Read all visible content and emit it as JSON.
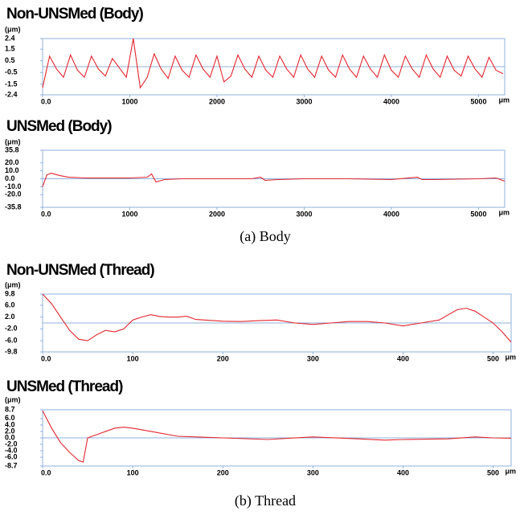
{
  "chart_data": [
    {
      "type": "line",
      "title": "Non-UNSMed (Body)",
      "y_unit": "(μm)",
      "x_unit": "μm",
      "x": [
        0,
        80,
        160,
        240,
        320,
        400,
        480,
        560,
        640,
        720,
        800,
        880,
        960,
        1040,
        1120,
        1200,
        1280,
        1360,
        1440,
        1520,
        1600,
        1680,
        1760,
        1840,
        1920,
        2000,
        2080,
        2160,
        2240,
        2320,
        2400,
        2480,
        2560,
        2640,
        2720,
        2800,
        2880,
        2960,
        3040,
        3120,
        3200,
        3280,
        3360,
        3440,
        3520,
        3600,
        3680,
        3760,
        3840,
        3920,
        4000,
        4080,
        4160,
        4240,
        4320,
        4400,
        4480,
        4560,
        4640,
        4720,
        4800,
        4880,
        4960,
        5040,
        5120,
        5200,
        5280
      ],
      "series": [
        {
          "color": "#e3262e",
          "values": [
            -1.8,
            0.9,
            -0.2,
            -0.9,
            1.0,
            -0.3,
            -0.9,
            0.9,
            -0.2,
            -0.8,
            0.7,
            -0.1,
            -0.9,
            2.4,
            -1.8,
            -0.9,
            1.1,
            -0.2,
            -1.0,
            0.9,
            -0.3,
            -0.9,
            1.0,
            -0.2,
            -0.9,
            0.9,
            -1.3,
            -0.8,
            1.0,
            -0.2,
            -0.9,
            0.9,
            -0.3,
            -0.9,
            0.9,
            -0.2,
            -0.9,
            1.0,
            -0.2,
            -0.9,
            0.9,
            -0.3,
            -0.9,
            1.0,
            -0.2,
            -0.9,
            0.9,
            -0.2,
            -0.9,
            1.0,
            -0.3,
            -0.9,
            0.9,
            -0.2,
            -0.9,
            1.0,
            -0.2,
            -0.9,
            0.9,
            -0.3,
            -0.8,
            0.9,
            -0.2,
            -0.9,
            0.8,
            -0.3,
            -0.6
          ]
        }
      ],
      "xlim": [
        0,
        5300
      ],
      "ylim": [
        -2.4,
        2.4
      ],
      "xticks": [
        {
          "value": 0,
          "label": "0.0"
        },
        1000,
        2000,
        3000,
        4000,
        5000
      ],
      "yticks": [
        2.4,
        1.5,
        0.5,
        -0.5,
        -1.5,
        -2.4
      ]
    },
    {
      "type": "line",
      "title": "UNSMed (Body)",
      "y_unit": "(μm)",
      "x_unit": "μm",
      "x": [
        0,
        50,
        100,
        200,
        300,
        500,
        800,
        1000,
        1200,
        1250,
        1300,
        1400,
        1600,
        2000,
        2400,
        2500,
        2550,
        2700,
        3000,
        3500,
        4000,
        4300,
        4350,
        4500,
        5000,
        5200,
        5300
      ],
      "series": [
        {
          "color": "#e3262e",
          "values": [
            -10,
            5,
            7,
            4,
            2,
            1,
            1,
            1,
            2,
            6,
            -4,
            -1,
            0,
            0,
            0,
            2,
            -2,
            -1,
            0,
            0,
            -1,
            2,
            -1,
            -1,
            0,
            1,
            -3
          ]
        }
      ],
      "xlim": [
        0,
        5300
      ],
      "ylim": [
        -35.8,
        35.8
      ],
      "xticks": [
        {
          "value": 0,
          "label": "0.0"
        },
        1000,
        2000,
        3000,
        4000,
        5000
      ],
      "yticks": [
        35.8,
        {
          "value": 20,
          "label": "20.0"
        },
        {
          "value": 10,
          "label": "10.0"
        },
        {
          "value": 0,
          "label": "0.0"
        },
        {
          "value": -10,
          "label": "-10.0"
        },
        {
          "value": -20,
          "label": "-20.0"
        },
        -35.8
      ]
    },
    {
      "type": "line",
      "title": "Non-UNSMed (Thread)",
      "y_unit": "(μm)",
      "x_unit": "μm",
      "x": [
        0,
        10,
        20,
        30,
        40,
        50,
        60,
        70,
        80,
        90,
        100,
        110,
        120,
        130,
        140,
        150,
        160,
        170,
        180,
        200,
        220,
        240,
        260,
        280,
        300,
        320,
        340,
        360,
        380,
        400,
        420,
        440,
        460,
        470,
        480,
        490,
        500,
        510,
        520
      ],
      "series": [
        {
          "color": "#e3262e",
          "values": [
            9.8,
            6.5,
            2,
            -2.5,
            -5.5,
            -6,
            -4,
            -2.5,
            -3,
            -2,
            1,
            2,
            2.8,
            2.2,
            2,
            2,
            2.3,
            1.2,
            1,
            0.6,
            0.5,
            0.8,
            1,
            0,
            -0.5,
            0,
            0.5,
            0.5,
            0,
            -1,
            0,
            1,
            4.5,
            5,
            4,
            2,
            0,
            -3,
            -6.5
          ]
        }
      ],
      "xlim": [
        0,
        520
      ],
      "ylim": [
        -9.8,
        9.8
      ],
      "xticks": [
        {
          "value": 0,
          "label": "0.0"
        },
        100,
        200,
        300,
        400,
        500
      ],
      "yticks": [
        9.8,
        {
          "value": 6,
          "label": "6.0"
        },
        {
          "value": 2,
          "label": "2.0"
        },
        {
          "value": -2,
          "label": "-2.0"
        },
        {
          "value": -6,
          "label": "-6.0"
        },
        -9.8
      ]
    },
    {
      "type": "line",
      "title": "UNSMed (Thread)",
      "y_unit": "(μm)",
      "x_unit": "μm",
      "x": [
        0,
        10,
        20,
        30,
        40,
        45,
        50,
        60,
        70,
        80,
        90,
        100,
        120,
        150,
        200,
        250,
        300,
        350,
        380,
        400,
        450,
        480,
        500,
        520
      ],
      "series": [
        {
          "color": "#e3262e",
          "values": [
            8.4,
            3,
            -1.5,
            -4.5,
            -7,
            -7.5,
            0,
            1,
            2,
            3,
            3.3,
            3,
            2,
            0.5,
            0,
            -0.5,
            0.3,
            -0.3,
            -0.7,
            -0.5,
            -0.3,
            0.3,
            0,
            -0.1
          ]
        }
      ],
      "xlim": [
        0,
        520
      ],
      "ylim": [
        -8.7,
        8.7
      ],
      "xticks": [
        {
          "value": 0,
          "label": "0.0"
        },
        100,
        200,
        300,
        400,
        500
      ],
      "yticks": [
        8.7,
        {
          "value": 6,
          "label": "6.0"
        },
        {
          "value": 4,
          "label": "4.0"
        },
        {
          "value": 2,
          "label": "2.0"
        },
        {
          "value": 0,
          "label": "0.0"
        },
        {
          "value": -2,
          "label": "-2.0"
        },
        {
          "value": -4,
          "label": "-4.0"
        },
        {
          "value": -6,
          "label": "-6.0"
        },
        -8.7
      ]
    }
  ],
  "captions": [
    "(a) Body",
    "(b) Thread"
  ]
}
